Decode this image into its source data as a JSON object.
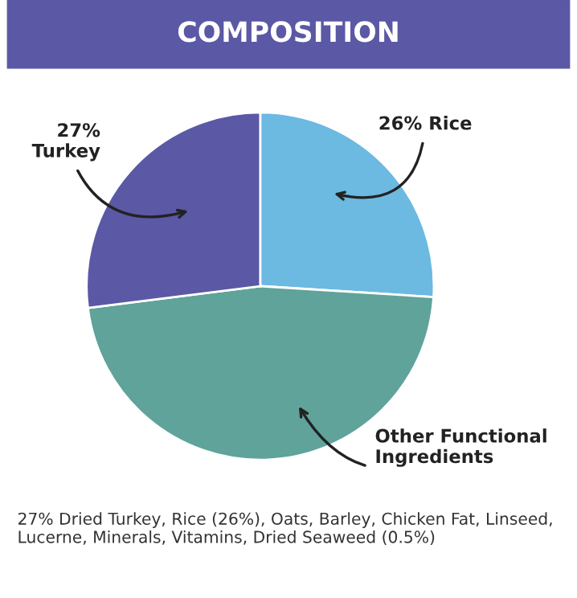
{
  "chart_data": {
    "type": "pie",
    "title": "COMPOSITION",
    "categories": [
      "Rice",
      "Other Functional Ingredients",
      "Turkey"
    ],
    "values": [
      26,
      47,
      27
    ],
    "value_labels": [
      "26%",
      null,
      "27%"
    ],
    "colors": [
      "#6cb9e1",
      "#5fa39b",
      "#5b58a5"
    ],
    "annotations": [
      "27% Dried Turkey, Rice (26%), Oats, Barley, Chicken Fat, Linseed, Lucerne, Minerals, Vitamins, Dried Seaweed (0.5%)"
    ]
  }
}
